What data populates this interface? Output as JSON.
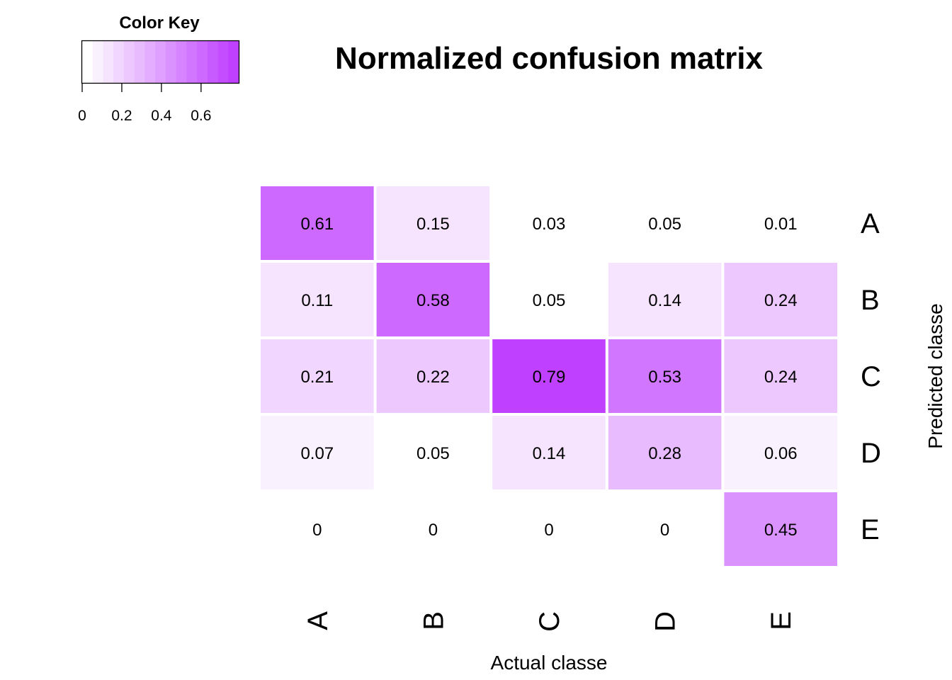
{
  "chart_data": {
    "type": "heatmap",
    "title": "Normalized confusion matrix",
    "xlabel": "Actual classe",
    "ylabel": "Predicted classe",
    "x_categories": [
      "A",
      "B",
      "C",
      "D",
      "E"
    ],
    "y_categories": [
      "A",
      "B",
      "C",
      "D",
      "E"
    ],
    "values": [
      [
        0.61,
        0.15,
        0.03,
        0.05,
        0.01
      ],
      [
        0.11,
        0.58,
        0.05,
        0.14,
        0.24
      ],
      [
        0.21,
        0.22,
        0.79,
        0.53,
        0.24
      ],
      [
        0.07,
        0.05,
        0.14,
        0.28,
        0.06
      ],
      [
        0,
        0,
        0,
        0,
        0.45
      ]
    ],
    "value_labels": [
      [
        "0.61",
        "0.15",
        "0.03",
        "0.05",
        "0.01"
      ],
      [
        "0.11",
        "0.58",
        "0.05",
        "0.14",
        "0.24"
      ],
      [
        "0.21",
        "0.22",
        "0.79",
        "0.53",
        "0.24"
      ],
      [
        "0.07",
        "0.05",
        "0.14",
        "0.28",
        "0.06"
      ],
      [
        "0",
        "0",
        "0",
        "0",
        "0.45"
      ]
    ],
    "color_key": {
      "title": "Color Key",
      "min": 0,
      "max": 0.79,
      "ticks": [
        0,
        0.2,
        0.4,
        0.6
      ],
      "tick_labels": [
        "0",
        "0.2",
        "0.4",
        "0.6"
      ],
      "low_color": "#ffffff",
      "high_color": "#bf40ff",
      "bins": 15
    },
    "legend_placement": "top-left",
    "grid": false
  }
}
